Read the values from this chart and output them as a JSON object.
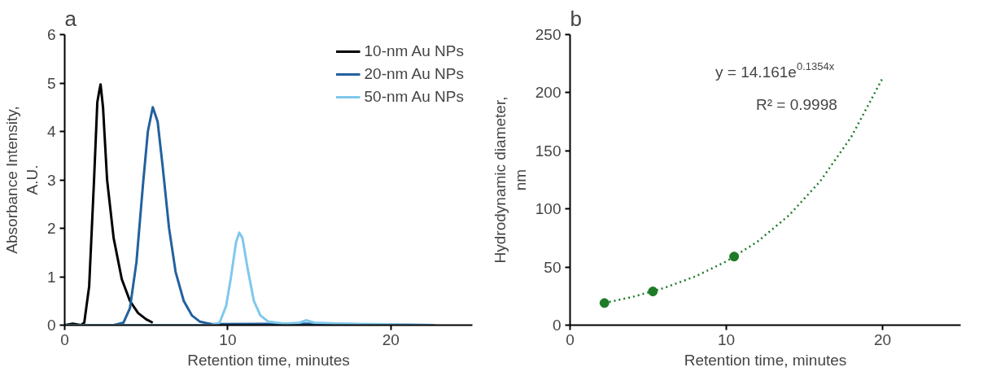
{
  "chart_data": [
    {
      "type": "line",
      "title": "a",
      "xlabel": "Retention time, minutes",
      "ylabel": "Absorbance Intensity,\nA.U.",
      "xlim": [
        0,
        25
      ],
      "ylim": [
        0,
        6
      ],
      "xticks": [
        0,
        10,
        20
      ],
      "yticks": [
        0,
        1,
        2,
        3,
        4,
        5,
        6
      ],
      "grid": false,
      "legend": "top right",
      "line_style": "solid",
      "series": [
        {
          "name": "10-nm Au NPs",
          "color": "#000000",
          "x": [
            0,
            0.5,
            1.0,
            1.2,
            1.5,
            1.8,
            2.0,
            2.1,
            2.2,
            2.35,
            2.6,
            3.0,
            3.5,
            4.0,
            4.5,
            5.0,
            5.4
          ],
          "values": [
            0,
            0.03,
            0,
            0.05,
            0.8,
            3.0,
            4.6,
            4.8,
            4.97,
            4.5,
            3.0,
            1.8,
            0.95,
            0.5,
            0.25,
            0.12,
            0.05
          ]
        },
        {
          "name": "20-nm Au NPs",
          "color": "#23619e",
          "x": [
            0,
            3.0,
            3.6,
            4.0,
            4.4,
            4.8,
            5.1,
            5.4,
            5.7,
            6.0,
            6.4,
            6.8,
            7.3,
            7.8,
            8.3,
            9.0,
            14.8,
            22.7
          ],
          "values": [
            0,
            0,
            0.05,
            0.35,
            1.3,
            2.9,
            4.0,
            4.5,
            4.2,
            3.3,
            2.0,
            1.1,
            0.5,
            0.2,
            0.07,
            0.02,
            0.03,
            0
          ]
        },
        {
          "name": "50-nm Au NPs",
          "color": "#7ec8ec",
          "x": [
            0,
            9.0,
            9.5,
            9.9,
            10.2,
            10.5,
            10.7,
            10.9,
            11.2,
            11.6,
            12.0,
            12.5,
            13.5,
            14.4,
            14.8,
            15.3,
            17.0,
            22.7
          ],
          "values": [
            0,
            0,
            0.05,
            0.4,
            1.0,
            1.7,
            1.91,
            1.8,
            1.2,
            0.5,
            0.2,
            0.07,
            0.03,
            0.05,
            0.1,
            0.05,
            0.03,
            0
          ]
        }
      ]
    },
    {
      "type": "scatter",
      "title": "b",
      "xlabel": "Retention time, minutes",
      "ylabel": "Hydrodynamic diameter,\nnm",
      "xlim": [
        0,
        25
      ],
      "ylim": [
        0,
        250
      ],
      "xticks": [
        0,
        10,
        20
      ],
      "yticks": [
        0,
        50,
        100,
        150,
        200,
        250
      ],
      "grid": false,
      "legend": false,
      "annotations": [
        "y = 14.161e$^{0.1354x}$",
        "R² = 0.9998"
      ],
      "series": [
        {
          "type": "scatter",
          "marker": "circle",
          "color": "#1e7b28",
          "x": [
            2.2,
            5.3,
            10.5
          ],
          "values": [
            19,
            29,
            59
          ]
        },
        {
          "type": "line",
          "line_style": "dotted",
          "color": "#1e7b28",
          "x": [
            2.2,
            4,
            6,
            8,
            10,
            12,
            14,
            16,
            18,
            20
          ],
          "values": [
            19.1,
            24.3,
            31.9,
            41.8,
            54.8,
            71.9,
            94.3,
            123.6,
            162.0,
            212.4
          ]
        }
      ]
    }
  ]
}
